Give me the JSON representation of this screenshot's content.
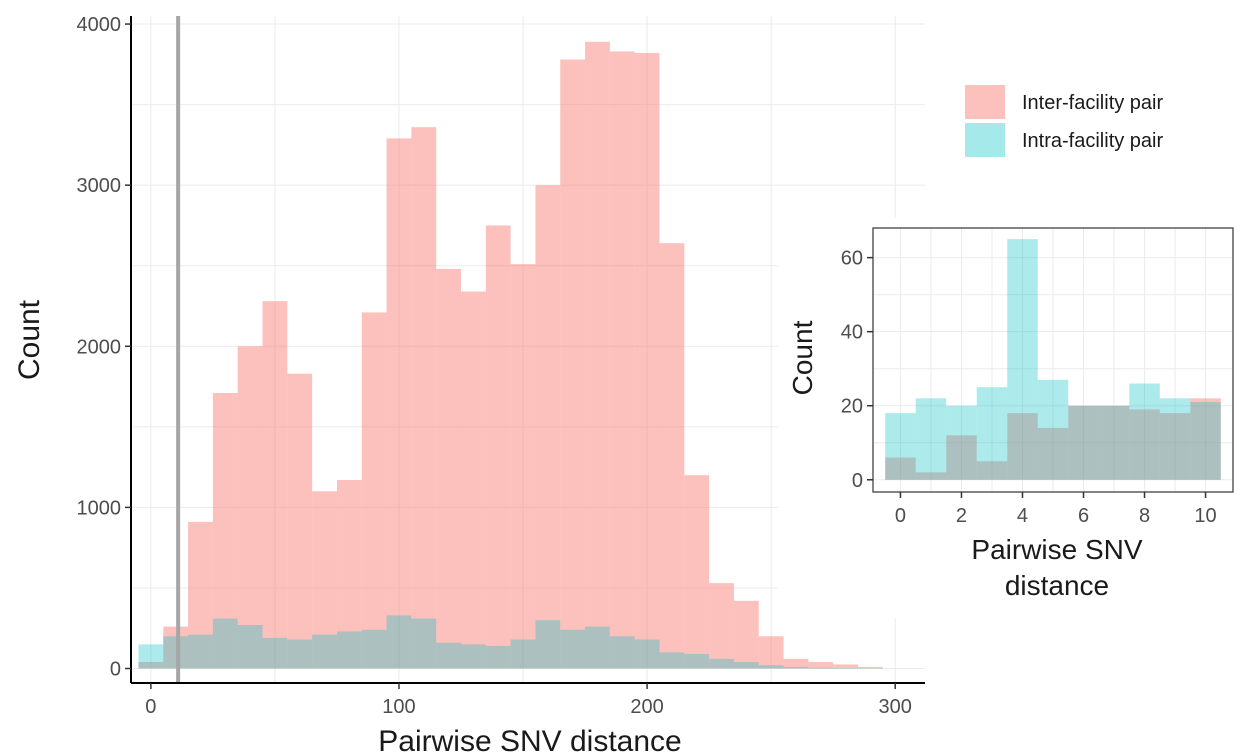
{
  "colors": {
    "inter": "#F8766D",
    "intra": "#00BFC4",
    "grid": "#ebebeb",
    "axis": "#000000",
    "vline": "#a6a6a6"
  },
  "legend": {
    "items": [
      {
        "label": "Inter-facility pair",
        "color": "#F8766D"
      },
      {
        "label": "Intra-facility pair",
        "color": "#00BFC4"
      }
    ],
    "position": "right"
  },
  "chart_data": [
    {
      "type": "bar",
      "subtype": "overlaid-histogram",
      "title": "",
      "xlabel": "Pairwise SNV distance",
      "ylabel": "Count",
      "xlim": [
        -8,
        312
      ],
      "ylim": [
        -90,
        4050
      ],
      "xticks": [
        0,
        100,
        200,
        300
      ],
      "yticks": [
        0,
        1000,
        2000,
        3000,
        4000
      ],
      "grid": true,
      "bin_width": 10,
      "bin_centers": [
        0,
        10,
        20,
        30,
        40,
        50,
        60,
        70,
        80,
        90,
        100,
        110,
        120,
        130,
        140,
        150,
        160,
        170,
        180,
        190,
        200,
        210,
        220,
        230,
        240,
        250,
        260,
        270,
        280,
        290
      ],
      "reference_line_x": 11,
      "series": [
        {
          "name": "Inter-facility pair",
          "color": "#F8766D",
          "values": [
            40,
            260,
            910,
            1710,
            2000,
            2280,
            1830,
            1100,
            1170,
            2210,
            3290,
            3360,
            2480,
            2340,
            2750,
            2510,
            3000,
            3780,
            3890,
            3830,
            3820,
            2640,
            1200,
            530,
            420,
            200,
            60,
            40,
            25,
            10
          ]
        },
        {
          "name": "Intra-facility pair",
          "color": "#00BFC4",
          "values": [
            150,
            200,
            210,
            310,
            270,
            190,
            180,
            210,
            230,
            240,
            330,
            310,
            160,
            150,
            140,
            180,
            300,
            240,
            260,
            200,
            180,
            100,
            90,
            60,
            40,
            20,
            10,
            5,
            3,
            2
          ]
        }
      ]
    },
    {
      "type": "bar",
      "subtype": "overlaid-histogram",
      "title": "",
      "xlabel": "Pairwise SNV\ndistance",
      "ylabel": "Count",
      "xlim": [
        -0.9,
        10.9
      ],
      "ylim": [
        -3.3,
        68
      ],
      "xticks": [
        0,
        2,
        4,
        6,
        8,
        10
      ],
      "yticks": [
        0,
        20,
        40,
        60
      ],
      "grid": true,
      "bin_width": 1,
      "bin_centers": [
        0,
        1,
        2,
        3,
        4,
        5,
        6,
        7,
        8,
        9,
        10
      ],
      "series": [
        {
          "name": "Inter-facility pair",
          "color": "#F8766D",
          "values": [
            6,
            2,
            12,
            5,
            18,
            14,
            20,
            20,
            19,
            18,
            22
          ]
        },
        {
          "name": "Intra-facility pair",
          "color": "#00BFC4",
          "values": [
            18,
            22,
            20,
            25,
            65,
            27,
            20,
            20,
            26,
            22,
            21
          ]
        }
      ]
    }
  ]
}
